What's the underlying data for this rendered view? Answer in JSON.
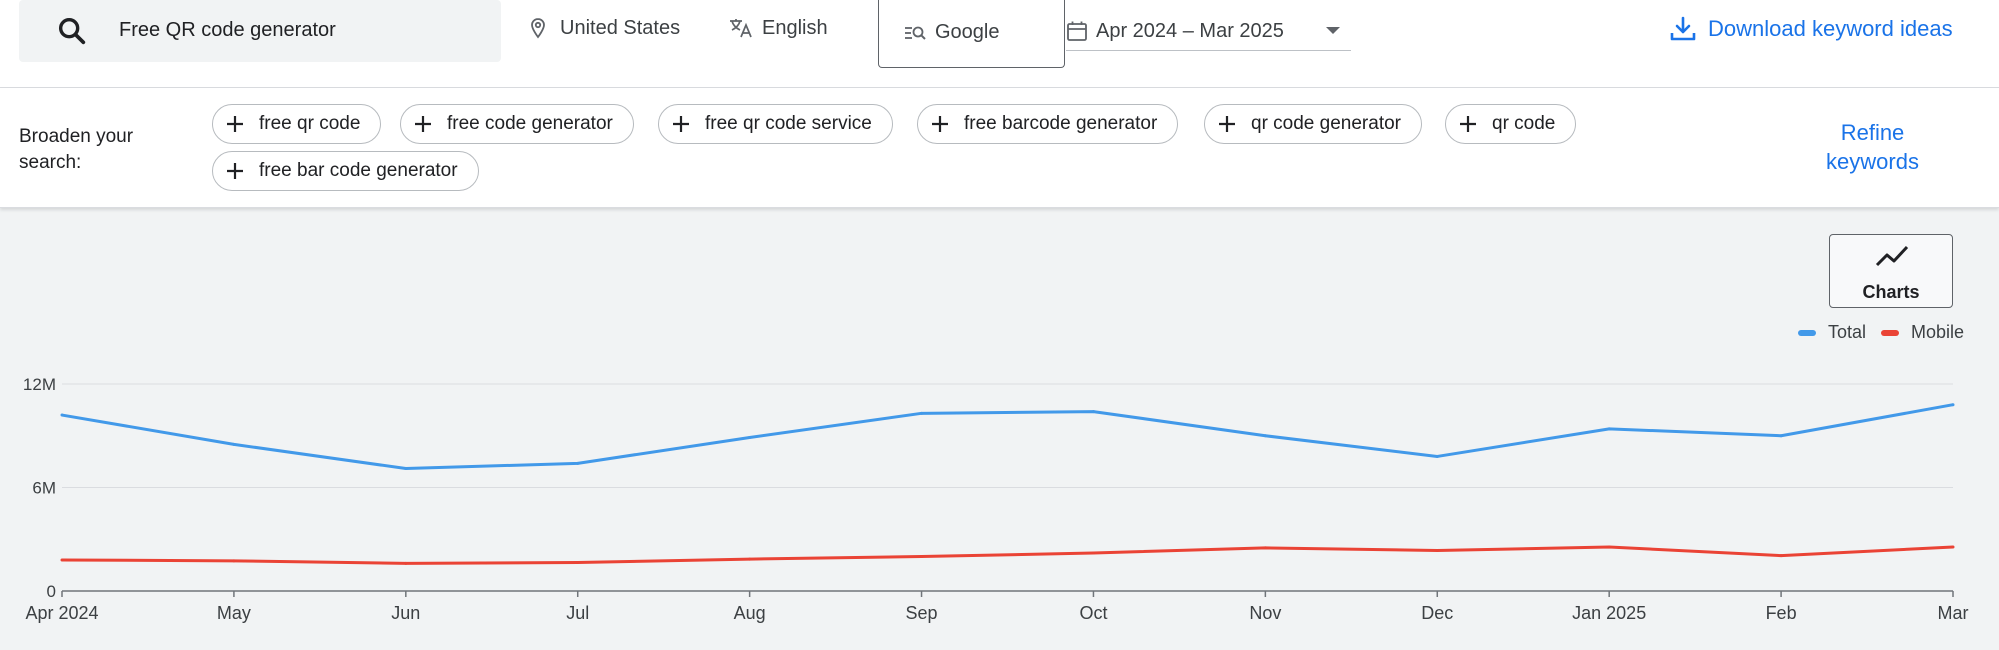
{
  "search": {
    "query": "Free QR code generator"
  },
  "filters": {
    "location": "United States",
    "language": "English",
    "network": "Google",
    "date_range": "Apr 2024 – Mar 2025"
  },
  "download_label": "Download keyword ideas",
  "broaden": {
    "label": "Broaden your search:",
    "chips": [
      "free qr code",
      "free code generator",
      "free qr code service",
      "free barcode generator",
      "qr code generator",
      "qr code",
      "free bar code generator"
    ],
    "refine_label": "Refine keywords"
  },
  "charts_button_label": "Charts",
  "colors": {
    "total": "#4299e9",
    "mobile": "#ea4335",
    "accent": "#1a73e8"
  },
  "chart_data": {
    "type": "line",
    "categories": [
      "Apr 2024",
      "May",
      "Jun",
      "Jul",
      "Aug",
      "Sep",
      "Oct",
      "Nov",
      "Dec",
      "Jan 2025",
      "Feb",
      "Mar"
    ],
    "series": [
      {
        "name": "Total",
        "values": [
          10.2,
          8.5,
          7.1,
          7.4,
          8.9,
          10.3,
          10.4,
          9.0,
          7.8,
          9.4,
          9.0,
          10.8
        ]
      },
      {
        "name": "Mobile",
        "values": [
          1.8,
          1.75,
          1.6,
          1.65,
          1.85,
          2.0,
          2.2,
          2.5,
          2.35,
          2.55,
          2.05,
          2.55
        ]
      }
    ],
    "yticks": [
      "0",
      "6M",
      "12M"
    ],
    "ylim": [
      0,
      12
    ],
    "legend": "top-right",
    "grid": true
  }
}
